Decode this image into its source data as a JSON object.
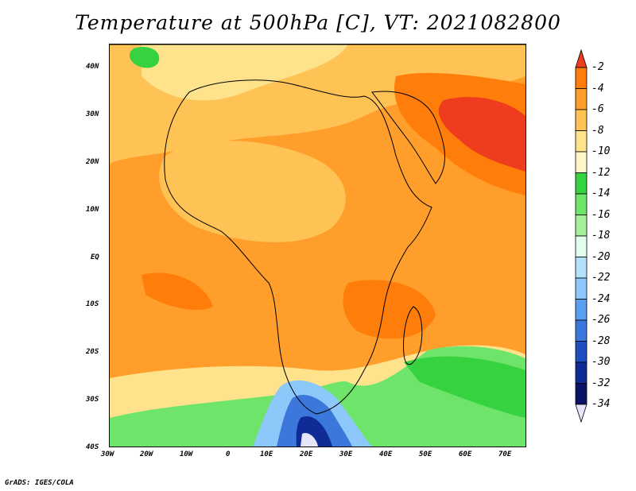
{
  "title": "Temperature at 500hPa [C], VT: 2021082800",
  "credit": "GrADS: IGES/COLA",
  "map": {
    "lat_labels": [
      "40N",
      "30N",
      "20N",
      "10N",
      "EQ",
      "10S",
      "20S",
      "30S",
      "40S"
    ],
    "lon_labels": [
      "30W",
      "20W",
      "10W",
      "0",
      "10E",
      "20E",
      "30E",
      "40E",
      "50E",
      "60E",
      "70E"
    ]
  },
  "colorbar": {
    "labels": [
      "-2",
      "-4",
      "-6",
      "-8",
      "-10",
      "-12",
      "-14",
      "-16",
      "-18",
      "-20",
      "-22",
      "-24",
      "-26",
      "-28",
      "-30",
      "-32",
      "-34"
    ],
    "colors": [
      "#f03c1e",
      "#ff7d0a",
      "#ff9e2a",
      "#ffc355",
      "#ffe38c",
      "#fff7c8",
      "#37d240",
      "#6ee46a",
      "#a6f09a",
      "#e1ffec",
      "#b4e1fa",
      "#8cc8fa",
      "#5a9fef",
      "#3c78dc",
      "#1e4fc0",
      "#0f2c96",
      "#0a1464",
      "#e6e6fa"
    ]
  }
}
